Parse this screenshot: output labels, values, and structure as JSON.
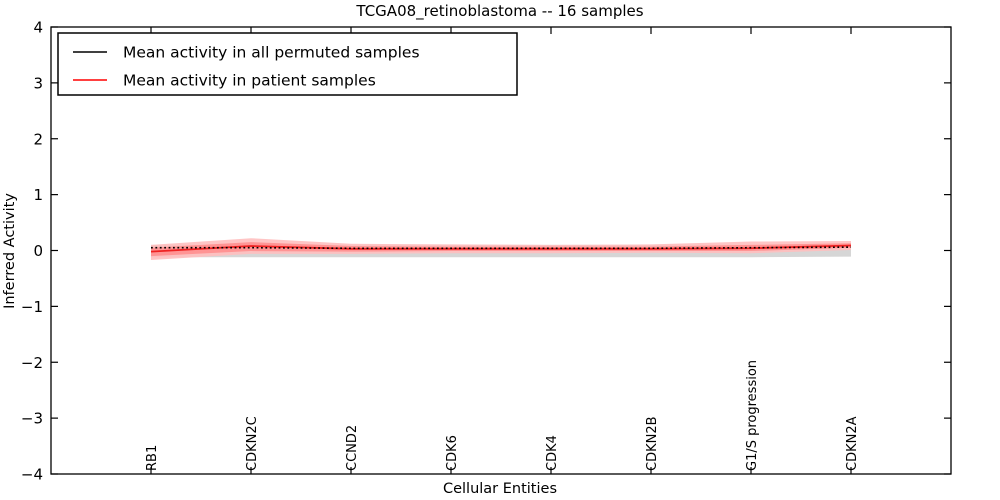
{
  "figure": {
    "background": "#ffffff",
    "frame_color": "#000000"
  },
  "chart_data": {
    "type": "line",
    "title": "TCGA08_retinoblastoma -- 16 samples",
    "xlabel": "Cellular Entities",
    "ylabel": "Inferred Activity",
    "xlim": [
      0,
      9
    ],
    "ylim": [
      -4,
      4
    ],
    "yticks": [
      4,
      3,
      2,
      1,
      0,
      -1,
      -2,
      -3,
      -4
    ],
    "ytick_labels": [
      "4",
      "3",
      "2",
      "1",
      "0",
      "−1",
      "−2",
      "−3",
      "−4"
    ],
    "grid": false,
    "categories": [
      "RB1",
      "CDKN2C",
      "CCND2",
      "CDK6",
      "CDK4",
      "CDKN2B",
      "G1/S progression",
      "CDKN2A"
    ],
    "category_positions": [
      1,
      2,
      3,
      4,
      5,
      6,
      7,
      8
    ],
    "series": [
      {
        "name": "Mean activity in all permuted samples",
        "color": "#000000",
        "style": "dotted",
        "values": [
          0.05,
          0.05,
          0.04,
          0.04,
          0.04,
          0.04,
          0.05,
          0.06
        ]
      },
      {
        "name": "Mean activity in patient samples",
        "color": "#ee2222",
        "legend_color": "#ff0000",
        "style": "solid",
        "values": [
          -0.02,
          0.08,
          0.03,
          0.03,
          0.03,
          0.03,
          0.04,
          0.09
        ]
      }
    ],
    "bands": [
      {
        "name": "permuted-std-band",
        "color": "#cccccc",
        "opacity": 0.8,
        "upper": [
          0.1,
          0.1,
          0.1,
          0.1,
          0.1,
          0.1,
          0.1,
          0.11
        ],
        "lower": [
          -0.12,
          -0.12,
          -0.12,
          -0.12,
          -0.12,
          -0.12,
          -0.12,
          -0.11
        ]
      },
      {
        "name": "patient-std-outer-band",
        "color": "#ffbfbf",
        "opacity": 0.9,
        "upper": [
          0.1,
          0.22,
          0.12,
          0.11,
          0.1,
          0.11,
          0.16,
          0.17
        ],
        "lower": [
          -0.17,
          -0.06,
          -0.06,
          -0.05,
          -0.05,
          -0.04,
          -0.05,
          0.01
        ]
      },
      {
        "name": "patient-std-inner-band",
        "color": "#ff8f8f",
        "opacity": 0.9,
        "upper": [
          0.05,
          0.15,
          0.08,
          0.07,
          0.07,
          0.07,
          0.1,
          0.13
        ],
        "lower": [
          -0.1,
          -0.01,
          -0.02,
          -0.01,
          -0.01,
          -0.01,
          -0.01,
          0.05
        ]
      }
    ],
    "legend": {
      "position": "upper-left",
      "entries": [
        "Mean activity in all permuted samples",
        "Mean activity in patient samples"
      ]
    }
  }
}
